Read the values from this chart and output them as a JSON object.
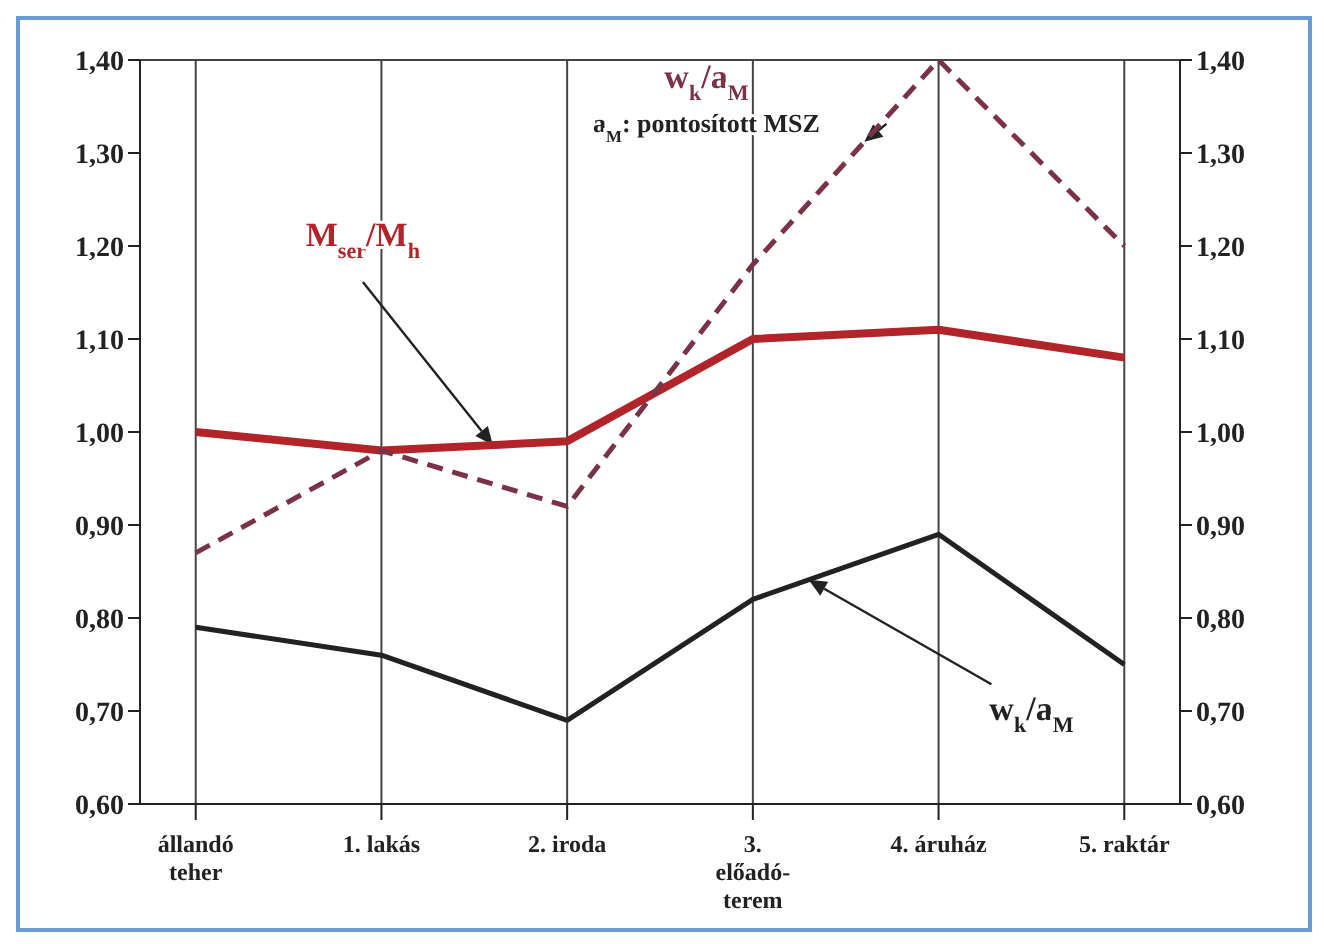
{
  "chart_data": {
    "type": "line",
    "categories": [
      "állandó teher",
      "1. lakás",
      "2. iroda",
      "3. előadó-terem",
      "4. áruház",
      "5. raktár"
    ],
    "series": [
      {
        "name": "M$_{ser}$/M$_{h}$",
        "color": "#b0242a",
        "values": [
          1.0,
          0.98,
          0.99,
          1.1,
          1.11,
          1.08
        ]
      },
      {
        "name": "w$_{k}$/a$_{M}$",
        "color": "#7a3346",
        "line_style": "dashed",
        "values": [
          0.87,
          0.98,
          0.92,
          1.18,
          1.4,
          1.2
        ]
      },
      {
        "name": "w$_{k}$/a$_{M}$",
        "color": "#222222",
        "values": [
          0.79,
          0.76,
          0.69,
          0.82,
          0.89,
          0.75
        ]
      }
    ],
    "annotations": [
      "a$_{M}$: pontosított MSZ"
    ],
    "ylim": [
      0.6,
      1.4
    ],
    "yticks": [
      {
        "value": 0.6,
        "label": "0,60"
      },
      {
        "value": 0.7,
        "label": "0,70"
      },
      {
        "value": 0.8,
        "label": "0,80"
      },
      {
        "value": 0.9,
        "label": "0,90"
      },
      {
        "value": 1.0,
        "label": "1,00"
      },
      {
        "value": 1.1,
        "label": "1,10"
      },
      {
        "value": 1.2,
        "label": "1,20"
      },
      {
        "value": 1.3,
        "label": "1,30"
      },
      {
        "value": 1.4,
        "label": "1,40"
      }
    ],
    "y2lim": [
      0.6,
      1.4
    ],
    "y2ticks": [
      {
        "value": 0.6,
        "label": "0,60"
      },
      {
        "value": 0.7,
        "label": "0,70"
      },
      {
        "value": 0.8,
        "label": "0,80"
      },
      {
        "value": 0.9,
        "label": "0,90"
      },
      {
        "value": 1.0,
        "label": "1,00"
      },
      {
        "value": 1.1,
        "label": "1,10"
      },
      {
        "value": 1.2,
        "label": "1,20"
      },
      {
        "value": 1.3,
        "label": "1,30"
      },
      {
        "value": 1.4,
        "label": "1,40"
      }
    ],
    "grid": true,
    "marker": "none"
  }
}
